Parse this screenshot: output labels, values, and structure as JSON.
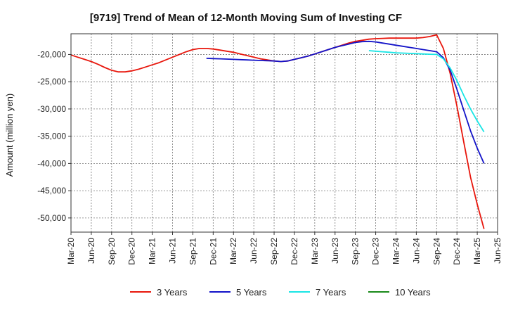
{
  "chart_data": {
    "type": "line",
    "title": "[9719]  Trend of Mean of 12-Month Moving Sum of Investing CF",
    "xlabel": "",
    "ylabel": "Amount (million yen)",
    "x_ticks": [
      "Mar-20",
      "Jun-20",
      "Sep-20",
      "Dec-20",
      "Mar-21",
      "Jun-21",
      "Sep-21",
      "Dec-21",
      "Mar-22",
      "Jun-22",
      "Sep-22",
      "Dec-22",
      "Mar-23",
      "Jun-23",
      "Sep-23",
      "Dec-23",
      "Mar-24",
      "Jun-24",
      "Sep-24",
      "Dec-24",
      "Mar-25",
      "Jun-25"
    ],
    "y_ticks": [
      -20000,
      -25000,
      -30000,
      -35000,
      -40000,
      -45000,
      -50000
    ],
    "y_tick_labels": [
      "-20,000",
      "-25,000",
      "-30,000",
      "-35,000",
      "-40,000",
      "-45,000",
      "-50,000"
    ],
    "ylim": [
      -52600,
      -16200
    ],
    "grid": true,
    "legend_position": "bottom",
    "series": [
      {
        "name": "3 Years",
        "color": "#e8160c",
        "points": [
          [
            "Mar-20",
            -20100
          ],
          [
            "Apr-20",
            -20500
          ],
          [
            "May-20",
            -20900
          ],
          [
            "Jun-20",
            -21300
          ],
          [
            "Jul-20",
            -21800
          ],
          [
            "Aug-20",
            -22400
          ],
          [
            "Sep-20",
            -22900
          ],
          [
            "Oct-20",
            -23200
          ],
          [
            "Nov-20",
            -23200
          ],
          [
            "Dec-20",
            -23000
          ],
          [
            "Jan-21",
            -22700
          ],
          [
            "Feb-21",
            -22300
          ],
          [
            "Mar-21",
            -21900
          ],
          [
            "Apr-21",
            -21500
          ],
          [
            "May-21",
            -21000
          ],
          [
            "Jun-21",
            -20500
          ],
          [
            "Jul-21",
            -20000
          ],
          [
            "Aug-21",
            -19500
          ],
          [
            "Sep-21",
            -19100
          ],
          [
            "Oct-21",
            -18900
          ],
          [
            "Nov-21",
            -18900
          ],
          [
            "Dec-21",
            -19000
          ],
          [
            "Jan-22",
            -19200
          ],
          [
            "Feb-22",
            -19400
          ],
          [
            "Mar-22",
            -19600
          ],
          [
            "Apr-22",
            -19900
          ],
          [
            "May-22",
            -20200
          ],
          [
            "Jun-22",
            -20500
          ],
          [
            "Jul-22",
            -20800
          ],
          [
            "Aug-22",
            -21000
          ],
          [
            "Sep-22",
            -21200
          ],
          [
            "Oct-22",
            -21300
          ],
          [
            "Nov-22",
            -21200
          ],
          [
            "Dec-22",
            -20900
          ],
          [
            "Jan-23",
            -20600
          ],
          [
            "Feb-23",
            -20300
          ],
          [
            "Mar-23",
            -19900
          ],
          [
            "Apr-23",
            -19500
          ],
          [
            "May-23",
            -19100
          ],
          [
            "Jun-23",
            -18700
          ],
          [
            "Jul-23",
            -18300
          ],
          [
            "Aug-23",
            -17900
          ],
          [
            "Sep-23",
            -17600
          ],
          [
            "Oct-23",
            -17400
          ],
          [
            "Nov-23",
            -17200
          ],
          [
            "Dec-23",
            -17100
          ],
          [
            "Jan-24",
            -17050
          ],
          [
            "Feb-24",
            -17000
          ],
          [
            "Mar-24",
            -17000
          ],
          [
            "Apr-24",
            -17000
          ],
          [
            "May-24",
            -17000
          ],
          [
            "Jun-24",
            -17000
          ],
          [
            "Jul-24",
            -16900
          ],
          [
            "Aug-24",
            -16700
          ],
          [
            "Sep-24",
            -16400
          ],
          [
            "Oct-24",
            -18900
          ],
          [
            "Nov-24",
            -23500
          ],
          [
            "Dec-24",
            -29500
          ],
          [
            "Jan-25",
            -36000
          ],
          [
            "Feb-25",
            -42500
          ],
          [
            "Mar-25",
            -47500
          ],
          [
            "Apr-25",
            -52000
          ]
        ]
      },
      {
        "name": "5 Years",
        "color": "#1212c8",
        "points": [
          [
            "Nov-21",
            -20700
          ],
          [
            "Dec-21",
            -20750
          ],
          [
            "Jan-22",
            -20800
          ],
          [
            "Feb-22",
            -20850
          ],
          [
            "Mar-22",
            -20900
          ],
          [
            "Apr-22",
            -20950
          ],
          [
            "May-22",
            -21000
          ],
          [
            "Jun-22",
            -21050
          ],
          [
            "Jul-22",
            -21100
          ],
          [
            "Aug-22",
            -21150
          ],
          [
            "Sep-22",
            -21200
          ],
          [
            "Oct-22",
            -21300
          ],
          [
            "Nov-22",
            -21200
          ],
          [
            "Dec-22",
            -20900
          ],
          [
            "Jan-23",
            -20600
          ],
          [
            "Feb-23",
            -20300
          ],
          [
            "Mar-23",
            -19900
          ],
          [
            "Apr-23",
            -19500
          ],
          [
            "May-23",
            -19100
          ],
          [
            "Jun-23",
            -18700
          ],
          [
            "Jul-23",
            -18400
          ],
          [
            "Aug-23",
            -18100
          ],
          [
            "Sep-23",
            -17800
          ],
          [
            "Oct-23",
            -17650
          ],
          [
            "Nov-23",
            -17600
          ],
          [
            "Dec-23",
            -17700
          ],
          [
            "Jan-24",
            -17900
          ],
          [
            "Feb-24",
            -18100
          ],
          [
            "Mar-24",
            -18300
          ],
          [
            "Apr-24",
            -18500
          ],
          [
            "May-24",
            -18700
          ],
          [
            "Jun-24",
            -18900
          ],
          [
            "Jul-24",
            -19100
          ],
          [
            "Aug-24",
            -19300
          ],
          [
            "Sep-24",
            -19500
          ],
          [
            "Oct-24",
            -20600
          ],
          [
            "Nov-24",
            -22900
          ],
          [
            "Dec-24",
            -26400
          ],
          [
            "Jan-25",
            -30200
          ],
          [
            "Feb-25",
            -34000
          ],
          [
            "Mar-25",
            -37200
          ],
          [
            "Apr-25",
            -40000
          ]
        ]
      },
      {
        "name": "7 Years",
        "color": "#19e5e5",
        "points": [
          [
            "Nov-23",
            -19300
          ],
          [
            "Dec-23",
            -19400
          ],
          [
            "Jan-24",
            -19500
          ],
          [
            "Feb-24",
            -19600
          ],
          [
            "Mar-24",
            -19700
          ],
          [
            "Apr-24",
            -19750
          ],
          [
            "May-24",
            -19800
          ],
          [
            "Jun-24",
            -19850
          ],
          [
            "Jul-24",
            -19900
          ],
          [
            "Aug-24",
            -19950
          ],
          [
            "Sep-24",
            -20000
          ],
          [
            "Oct-24",
            -20800
          ],
          [
            "Nov-24",
            -22500
          ],
          [
            "Dec-24",
            -24800
          ],
          [
            "Jan-25",
            -27500
          ],
          [
            "Feb-25",
            -30000
          ],
          [
            "Mar-25",
            -32200
          ],
          [
            "Apr-25",
            -34200
          ]
        ]
      },
      {
        "name": "10 Years",
        "color": "#1a8a1a",
        "points": []
      }
    ]
  }
}
